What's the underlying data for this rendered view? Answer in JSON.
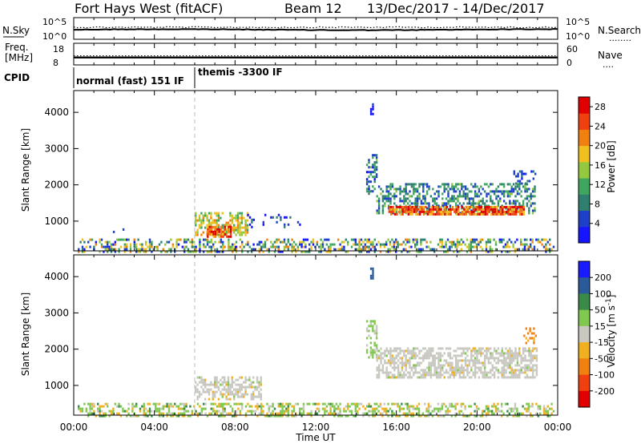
{
  "header": {
    "station": "Fort Hays West (fitACF)",
    "beam": "Beam 12",
    "dates": "13/Dec/2017 - 14/Dec/2017"
  },
  "noise_panel": {
    "left_label": "N.Sky",
    "left_ticks": [
      "10^5",
      "10^0"
    ],
    "right_ticks": [
      "10^5",
      "10^0"
    ],
    "right_label": "N.Search",
    "right_key": "........"
  },
  "freq_panel": {
    "left_label_1": "Freq.",
    "left_label_2": "[MHz]",
    "left_ticks": [
      "18",
      "8"
    ],
    "right_ticks": [
      "60",
      "0"
    ],
    "right_label": "Nave",
    "right_key": "....",
    "level": 0.32
  },
  "cpid_panel": {
    "label": "CPID",
    "modes": [
      {
        "text": "normal (fast) 151 IF",
        "start": 0,
        "end": 6
      },
      {
        "text": "themis -3300 IF",
        "start": 6,
        "end": 24
      }
    ]
  },
  "chart_data": [
    {
      "type": "heatmap",
      "quantity": "power",
      "ylabel": "Slant Range [km]",
      "xlabel": "Time UT",
      "xlim": [
        0,
        24
      ],
      "ylim": [
        180,
        4600
      ],
      "yticks": [
        "1000",
        "2000",
        "3000",
        "4000"
      ],
      "colorbar": {
        "label": "Power [dB]",
        "ticks": [
          "4",
          "8",
          "12",
          "16",
          "20",
          "24",
          "28"
        ],
        "range": [
          0,
          30
        ],
        "colors": [
          "#1515ff",
          "#1e40c8",
          "#2f7f70",
          "#3fa65f",
          "#93c940",
          "#f0c020",
          "#f08010",
          "#f04010",
          "#e00000"
        ]
      },
      "regions": [
        {
          "t0": 0.2,
          "t1": 23.8,
          "r0": 180,
          "r1": 520,
          "density": 0.42,
          "level": [
            2,
            22
          ]
        },
        {
          "t0": 0.8,
          "t1": 3.0,
          "r0": 700,
          "r1": 1000,
          "density": 0.07,
          "level": [
            0,
            6
          ]
        },
        {
          "t0": 6.0,
          "t1": 8.6,
          "r0": 650,
          "r1": 1250,
          "density": 0.6,
          "level": [
            10,
            22
          ]
        },
        {
          "t0": 6.6,
          "t1": 7.8,
          "r0": 580,
          "r1": 870,
          "density": 0.75,
          "level": [
            18,
            30
          ]
        },
        {
          "t0": 8.6,
          "t1": 11.2,
          "r0": 850,
          "r1": 1200,
          "density": 0.15,
          "level": [
            0,
            10
          ]
        },
        {
          "t0": 14.5,
          "t1": 15.0,
          "r0": 1750,
          "r1": 2850,
          "density": 0.5,
          "level": [
            2,
            14
          ]
        },
        {
          "t0": 14.7,
          "t1": 14.8,
          "r0": 3950,
          "r1": 4250,
          "density": 0.7,
          "level": [
            0,
            4
          ]
        },
        {
          "t0": 15.0,
          "t1": 22.9,
          "r0": 1200,
          "r1": 2050,
          "density": 0.48,
          "level": [
            4,
            14
          ]
        },
        {
          "t0": 15.6,
          "t1": 22.3,
          "r0": 1180,
          "r1": 1420,
          "density": 0.8,
          "level": [
            18,
            30
          ]
        },
        {
          "t0": 21.8,
          "t1": 23.0,
          "r0": 2050,
          "r1": 2400,
          "density": 0.3,
          "level": [
            2,
            10
          ]
        }
      ]
    },
    {
      "type": "heatmap",
      "quantity": "velocity",
      "ylabel": "Slant Range [km]",
      "xlabel": "Time UT",
      "xlim": [
        0,
        24
      ],
      "ylim": [
        180,
        4600
      ],
      "yticks": [
        "1000",
        "2000",
        "3000",
        "4000"
      ],
      "colorbar": {
        "label": "Velocity [m s^-1]",
        "ticks": [
          "200",
          "100",
          "50",
          "15",
          "-15",
          "-50",
          "-100",
          "-200"
        ],
        "colors": [
          "#1a1aff",
          "#2a5a9a",
          "#3a8a4a",
          "#80c850",
          "#c8c8c0",
          "#f0b020",
          "#f08010",
          "#f04010",
          "#e00000"
        ]
      },
      "regions": [
        {
          "t0": 0.2,
          "t1": 23.8,
          "r0": 180,
          "r1": 520,
          "density": 0.45,
          "kind": "green_orange"
        },
        {
          "t0": 6.0,
          "t1": 9.3,
          "r0": 640,
          "r1": 1250,
          "density": 0.55,
          "kind": "gray"
        },
        {
          "t0": 14.5,
          "t1": 15.0,
          "r0": 1750,
          "r1": 2800,
          "density": 0.45,
          "kind": "green"
        },
        {
          "t0": 14.7,
          "t1": 14.8,
          "r0": 3950,
          "r1": 4250,
          "density": 0.7,
          "kind": "blue"
        },
        {
          "t0": 15.0,
          "t1": 23.0,
          "r0": 1200,
          "r1": 2050,
          "density": 0.62,
          "kind": "gray"
        },
        {
          "t0": 22.3,
          "t1": 22.9,
          "r0": 2200,
          "r1": 2600,
          "density": 0.4,
          "kind": "orange"
        }
      ]
    }
  ],
  "time_ticks": [
    "00:00",
    "04:00",
    "08:00",
    "12:00",
    "16:00",
    "20:00",
    "00:00"
  ],
  "time_label": "Time UT",
  "mode_change_time": 6
}
